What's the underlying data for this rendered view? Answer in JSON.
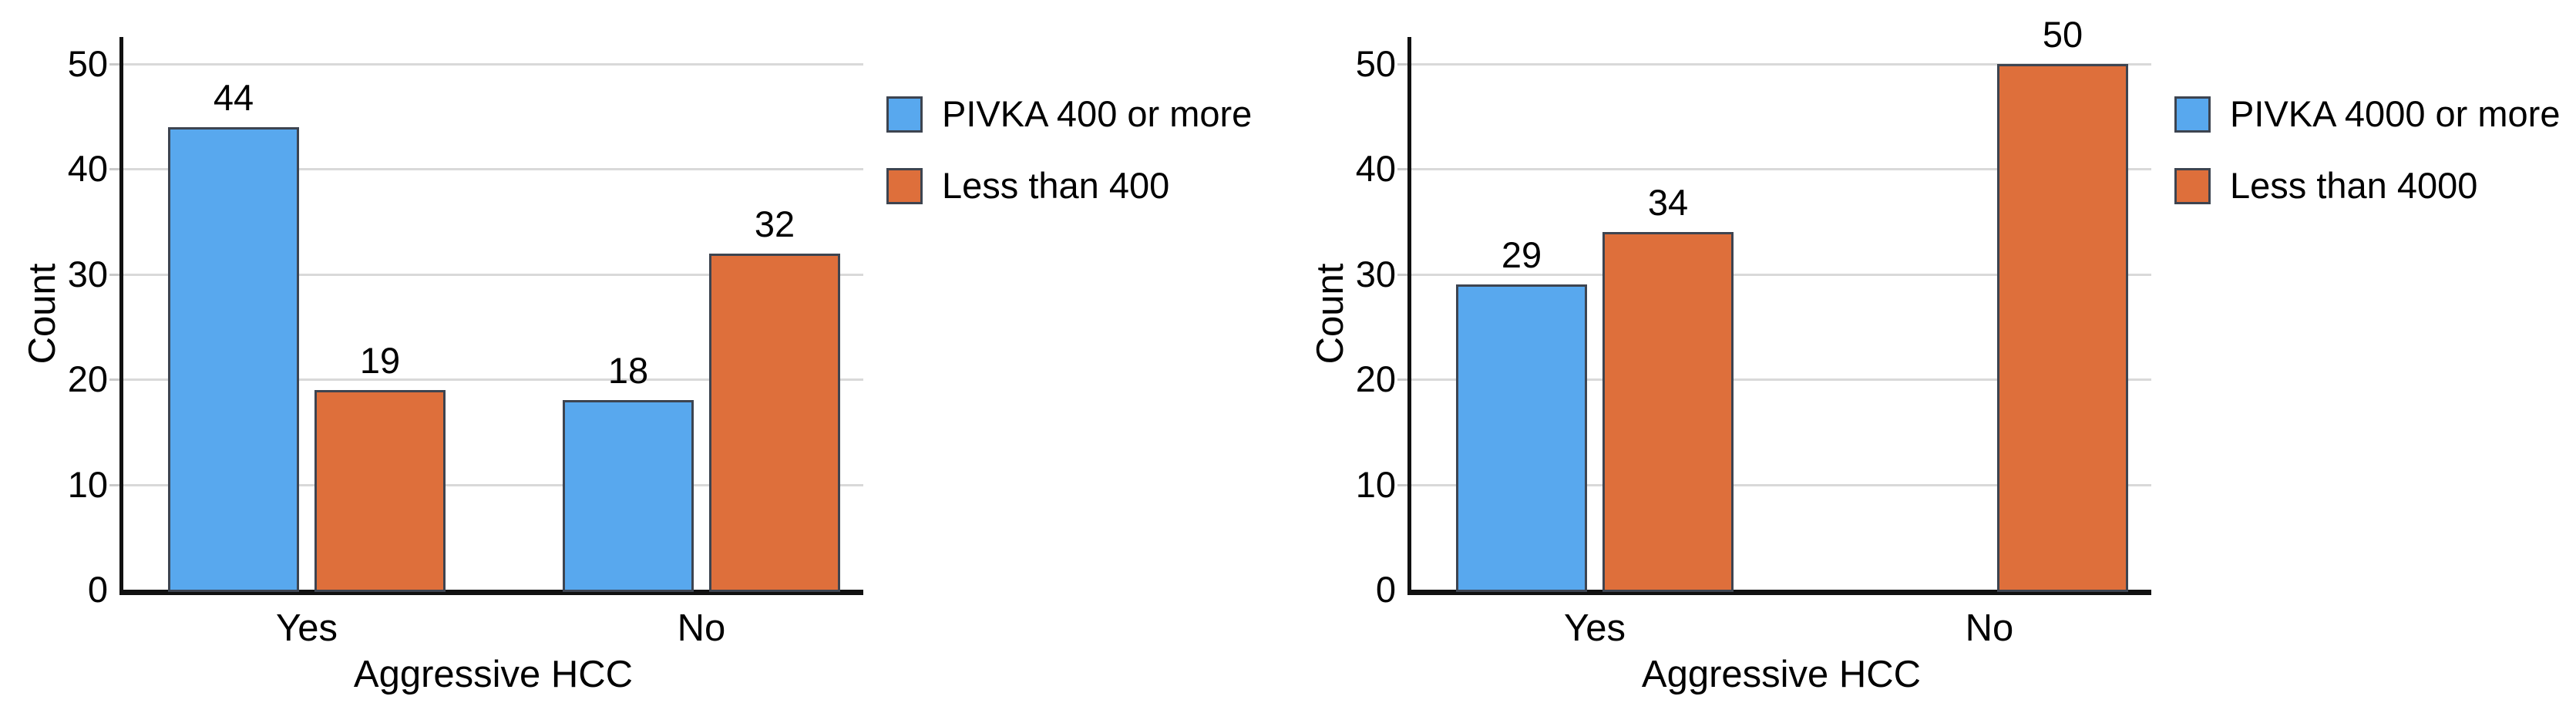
{
  "chart_data": [
    {
      "type": "bar",
      "title": "",
      "xlabel": "Aggressive HCC",
      "ylabel": "Count",
      "categories": [
        "Yes",
        "No"
      ],
      "series": [
        {
          "name": "PIVKA 400 or more",
          "color": "#58a8ee",
          "values": [
            44,
            18
          ]
        },
        {
          "name": "Less than 400",
          "color": "#de6f3b",
          "values": [
            19,
            32
          ]
        }
      ],
      "yticks": [
        0,
        10,
        20,
        30,
        40,
        50
      ],
      "ylim": [
        0,
        52.5
      ],
      "grid": true,
      "legend_position": "right",
      "bar_value_labels": true
    },
    {
      "type": "bar",
      "title": "",
      "xlabel": "Aggressive HCC",
      "ylabel": "Count",
      "categories": [
        "Yes",
        "No"
      ],
      "series": [
        {
          "name": "PIVKA 4000 or more",
          "color": "#58a8ee",
          "values": [
            29,
            null
          ]
        },
        {
          "name": "Less than 4000",
          "color": "#de6f3b",
          "values": [
            34,
            50
          ]
        }
      ],
      "yticks": [
        0,
        10,
        20,
        30,
        40,
        50
      ],
      "ylim": [
        0,
        52.5
      ],
      "grid": true,
      "legend_position": "right",
      "bar_value_labels": true
    }
  ],
  "styles": {
    "series_blue": "#58a8ee",
    "series_orange": "#de6f3b",
    "bar_border": "#3d4450",
    "gridline": "#d9d9d9",
    "axis": "#111111",
    "text": "#000000",
    "background": "#ffffff"
  }
}
